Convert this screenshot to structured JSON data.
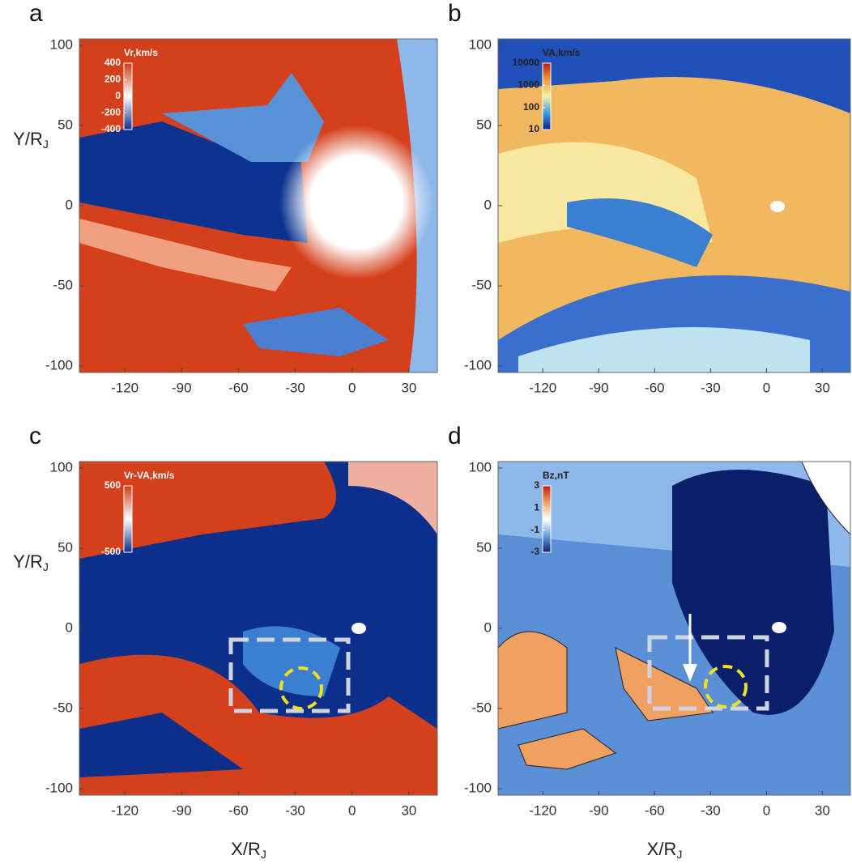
{
  "chart_data": [
    {
      "type": "heatmap",
      "panel": "a",
      "ylabel": {
        "main": "Y/R",
        "sub": "J"
      },
      "xlim": [
        -144,
        45
      ],
      "ylim": [
        -104,
        104
      ],
      "xticks": [
        -120,
        -90,
        -60,
        -30,
        0,
        30
      ],
      "yticks": [
        -100,
        -50,
        0,
        50,
        100
      ],
      "colorbar": {
        "label": "Vr,km/s",
        "lim": [
          -400,
          400
        ],
        "ticks": [
          400,
          200,
          0,
          -200,
          -400
        ],
        "log": false,
        "colormap": [
          "#0b2f8a",
          "#ffffff",
          "#d23a12"
        ]
      }
    },
    {
      "type": "heatmap",
      "panel": "b",
      "xlim": [
        -144,
        45
      ],
      "ylim": [
        -104,
        104
      ],
      "xticks": [
        -120,
        -90,
        -60,
        -30,
        0,
        30
      ],
      "yticks": [
        -100,
        -50,
        0,
        50,
        100
      ],
      "colorbar": {
        "label": "VA,km/s",
        "lim": [
          10,
          10000
        ],
        "ticks": [
          10000,
          1000,
          100,
          10
        ],
        "log": true,
        "colormap": [
          "#0a1f8f",
          "#3fa0e0",
          "#f8f0a0",
          "#f39a3a",
          "#c01a10"
        ]
      }
    },
    {
      "type": "heatmap",
      "panel": "c",
      "ylabel": {
        "main": "Y/R",
        "sub": "J"
      },
      "xlabel": {
        "main": "X/R",
        "sub": "J"
      },
      "xlim": [
        -144,
        45
      ],
      "ylim": [
        -104,
        104
      ],
      "xticks": [
        -120,
        -90,
        -60,
        -30,
        0,
        30
      ],
      "yticks": [
        -100,
        -50,
        0,
        50,
        100
      ],
      "colorbar": {
        "label": "Vr-VA,km/s",
        "lim": [
          -500,
          500
        ],
        "ticks": [
          500,
          -500
        ],
        "log": false,
        "colormap": [
          "#0b2f8a",
          "#ffffff",
          "#d23a12"
        ]
      }
    },
    {
      "type": "heatmap",
      "panel": "d",
      "xlabel": {
        "main": "X/R",
        "sub": "J"
      },
      "xlim": [
        -144,
        45
      ],
      "ylim": [
        -104,
        104
      ],
      "xticks": [
        -120,
        -90,
        -60,
        -30,
        0,
        30
      ],
      "yticks": [
        -100,
        -50,
        0,
        50,
        100
      ],
      "colorbar": {
        "label": "Bz,nT",
        "lim": [
          -3,
          3
        ],
        "ticks": [
          3,
          1,
          -1,
          -3
        ],
        "log": false,
        "colormap": [
          "#0a1f6a",
          "#6aa0e0",
          "#ffffff",
          "#f0a060",
          "#c01a10"
        ]
      }
    }
  ]
}
